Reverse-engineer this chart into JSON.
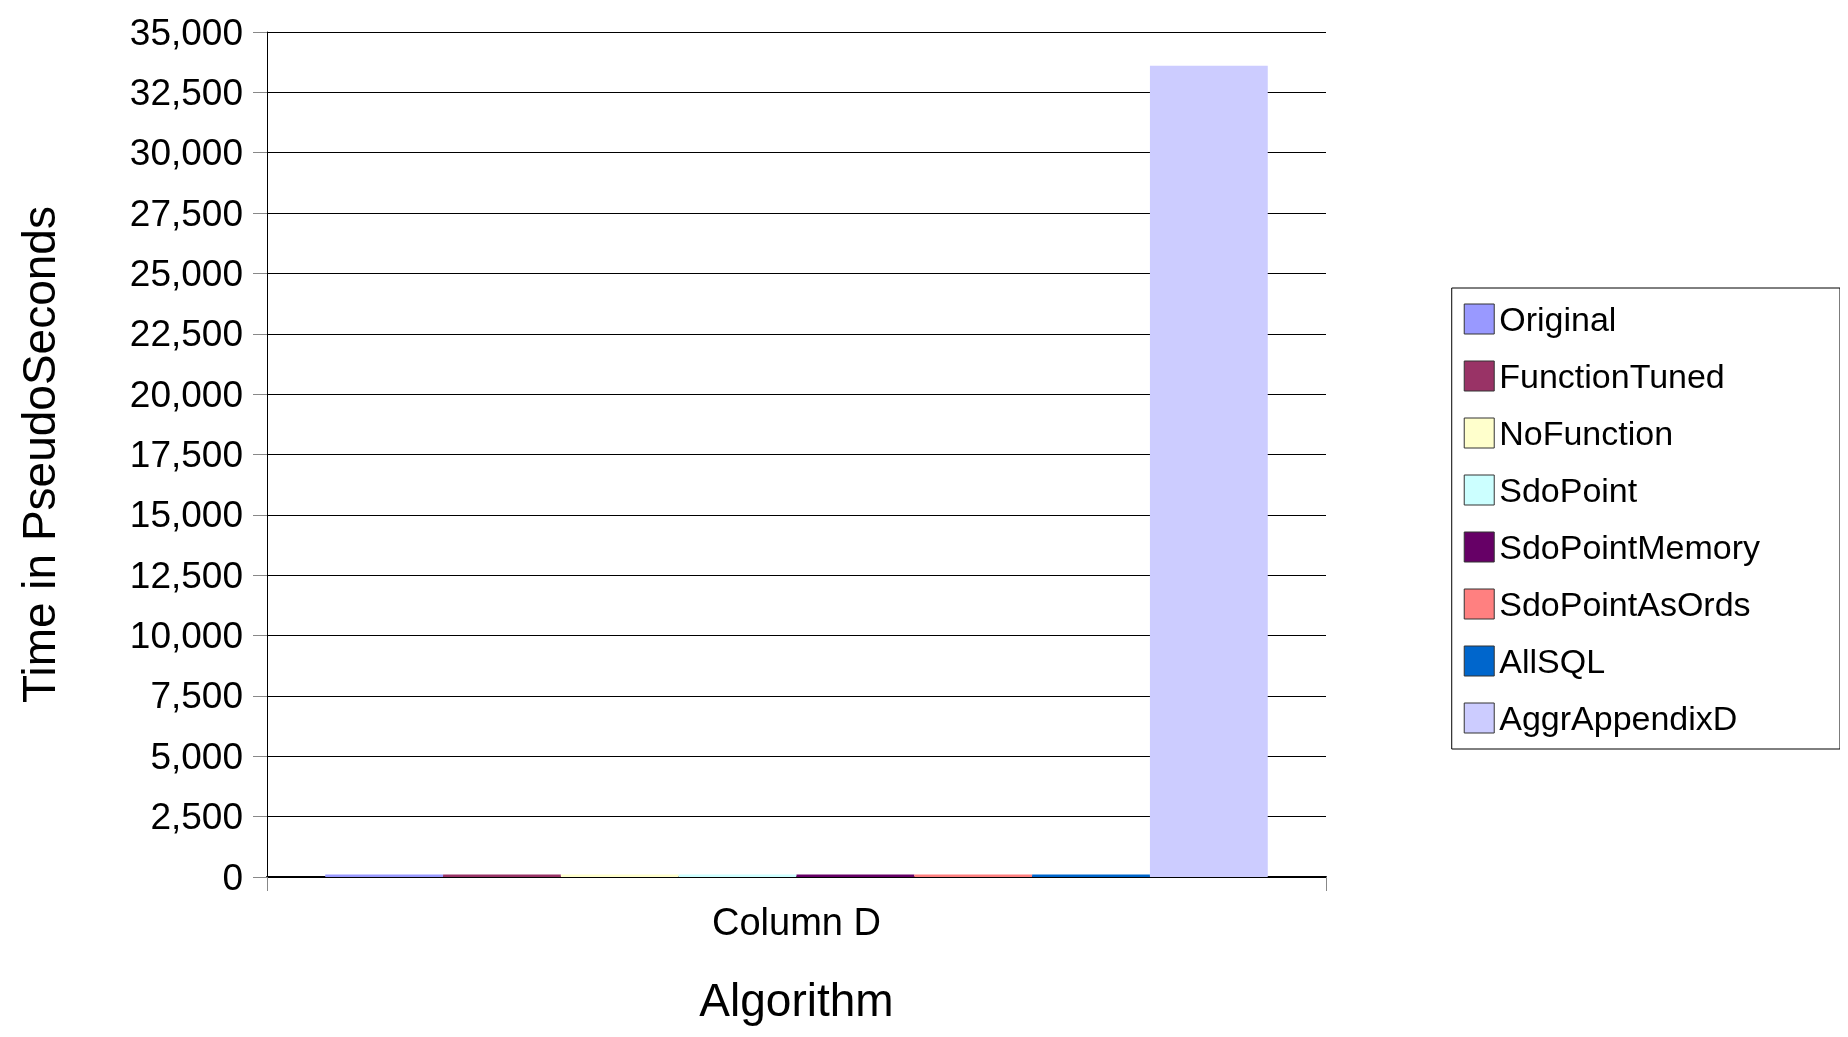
{
  "chart_data": {
    "type": "bar",
    "xlabel": "Algorithm",
    "ylabel": "Time in PseudoSeconds",
    "categories": [
      "Column D"
    ],
    "series": [
      {
        "name": "Original",
        "color": "#9999ff",
        "values": [
          100
        ]
      },
      {
        "name": "FunctionTuned",
        "color": "#993366",
        "values": [
          100
        ]
      },
      {
        "name": "NoFunction",
        "color": "#ffffcc",
        "values": [
          100
        ]
      },
      {
        "name": "SdoPoint",
        "color": "#ccffff",
        "values": [
          100
        ]
      },
      {
        "name": "SdoPointMemory",
        "color": "#660066",
        "values": [
          100
        ]
      },
      {
        "name": "SdoPointAsOrds",
        "color": "#ff8080",
        "values": [
          100
        ]
      },
      {
        "name": "AllSQL",
        "color": "#0066cc",
        "values": [
          100
        ]
      },
      {
        "name": "AggrAppendixD",
        "color": "#ccccff",
        "values": [
          33600
        ]
      }
    ],
    "ylim": [
      0,
      35000
    ],
    "yticks": [
      0,
      {
        "value": 2500,
        "label": "2,500"
      },
      {
        "value": 5000,
        "label": "5,000"
      },
      {
        "value": 7500,
        "label": "7,500"
      },
      {
        "value": 10000,
        "label": "10,000"
      },
      {
        "value": 12500,
        "label": "12,500"
      },
      {
        "value": 15000,
        "label": "15,000"
      },
      {
        "value": 17500,
        "label": "17,500"
      },
      {
        "value": 20000,
        "label": "20,000"
      },
      {
        "value": 22500,
        "label": "22,500"
      },
      {
        "value": 25000,
        "label": "25,000"
      },
      {
        "value": 27500,
        "label": "27,500"
      },
      {
        "value": 30000,
        "label": "30,000"
      },
      {
        "value": 32500,
        "label": "32,500"
      },
      {
        "value": 35000,
        "label": "35,000"
      }
    ],
    "grid": "y",
    "legend": "right"
  }
}
